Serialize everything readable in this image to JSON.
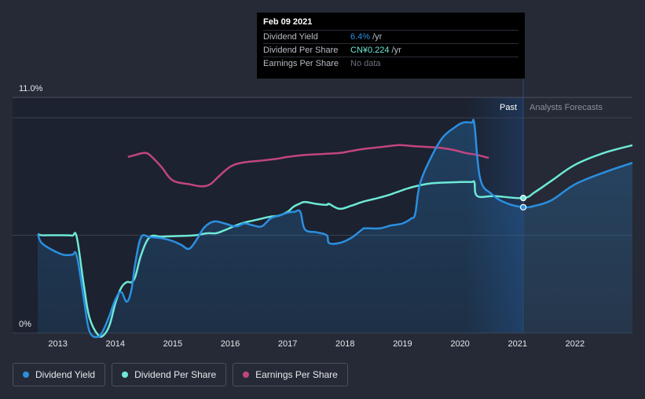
{
  "colors": {
    "dividend_yield": "#2b8fe0",
    "dividend_per_share": "#6ee9d6",
    "earnings_per_share": "#c2457f",
    "background": "#252a36",
    "past_region": "#1c2230",
    "forecast_region": "#1e3556"
  },
  "tooltip": {
    "date": "Feb 09 2021",
    "rows": [
      {
        "name": "Dividend Yield",
        "value": "6.4%",
        "unit": "/yr"
      },
      {
        "name": "Dividend Per Share",
        "value": "CN¥0.224",
        "unit": "/yr"
      },
      {
        "name": "Earnings Per Share",
        "value": "No data",
        "unit": ""
      }
    ]
  },
  "regions": {
    "past_label": "Past",
    "forecast_label": "Analysts Forecasts"
  },
  "legend": [
    {
      "label": "Dividend Yield",
      "color": "#2b8fe0"
    },
    {
      "label": "Dividend Per Share",
      "color": "#6ee9d6"
    },
    {
      "label": "Earnings Per Share",
      "color": "#c2457f"
    }
  ],
  "chart_data": {
    "type": "line",
    "y_axis": {
      "min": 0,
      "max": 11,
      "tick_labels": [
        "0%",
        "11.0%"
      ]
    },
    "x_axis": {
      "min": 2012.65,
      "max": 2023.0,
      "tick_labels": [
        "2013",
        "2014",
        "2015",
        "2016",
        "2017",
        "2018",
        "2019",
        "2020",
        "2021",
        "2022"
      ]
    },
    "past_until": 2021.1,
    "forecast_shade_from": 2020.1,
    "series": [
      {
        "name": "Dividend Yield",
        "x": [
          2012.65,
          2012.72,
          2012.9,
          2013.1,
          2013.25,
          2013.33,
          2013.45,
          2013.55,
          2013.7,
          2013.8,
          2013.9,
          2014.0,
          2014.1,
          2014.2,
          2014.28,
          2014.35,
          2014.45,
          2014.6,
          2014.8,
          2015.0,
          2015.15,
          2015.28,
          2015.4,
          2015.55,
          2015.72,
          2015.9,
          2016.1,
          2016.25,
          2016.4,
          2016.55,
          2016.7,
          2016.85,
          2017.0,
          2017.12,
          2017.22,
          2017.3,
          2017.5,
          2017.68,
          2017.72,
          2017.9,
          2018.1,
          2018.3,
          2018.35,
          2018.6,
          2018.8,
          2019.0,
          2019.15,
          2019.22,
          2019.3,
          2019.5,
          2019.7,
          2019.9,
          2020.05,
          2020.2,
          2020.25,
          2020.35,
          2020.55,
          2020.8,
          2021.1,
          2021.3,
          2021.6,
          2022.0,
          2022.5,
          2023.0
        ],
        "values": [
          5.05,
          4.6,
          4.25,
          4.0,
          4.0,
          3.95,
          1.8,
          0.1,
          -0.2,
          0.2,
          0.9,
          1.7,
          2.1,
          1.6,
          2.2,
          3.6,
          4.9,
          4.9,
          4.85,
          4.7,
          4.5,
          4.3,
          4.7,
          5.4,
          5.7,
          5.6,
          5.45,
          5.6,
          5.5,
          5.45,
          5.85,
          6.0,
          6.15,
          6.2,
          6.2,
          5.3,
          5.15,
          5.0,
          4.6,
          4.6,
          4.85,
          5.3,
          5.35,
          5.35,
          5.5,
          5.6,
          5.85,
          6.1,
          7.6,
          9.0,
          10.0,
          10.5,
          10.75,
          10.75,
          10.65,
          7.9,
          7.1,
          6.65,
          6.43,
          6.5,
          6.8,
          7.6,
          8.2,
          8.7
        ]
      },
      {
        "name": "Dividend Per Share",
        "x": [
          2012.65,
          2012.72,
          2012.9,
          2013.1,
          2013.25,
          2013.33,
          2013.45,
          2013.55,
          2013.7,
          2013.8,
          2013.9,
          2014.0,
          2014.1,
          2014.2,
          2014.28,
          2014.35,
          2014.45,
          2014.6,
          2014.8,
          2015.0,
          2015.2,
          2015.4,
          2015.6,
          2015.75,
          2015.9,
          2016.1,
          2016.25,
          2016.4,
          2016.55,
          2016.7,
          2016.85,
          2017.0,
          2017.1,
          2017.2,
          2017.3,
          2017.5,
          2017.68,
          2017.72,
          2017.9,
          2018.1,
          2018.3,
          2018.5,
          2018.7,
          2018.9,
          2019.1,
          2019.3,
          2019.5,
          2019.8,
          2020.0,
          2020.2,
          2020.25,
          2020.3,
          2020.6,
          2021.1,
          2021.3,
          2021.6,
          2022.0,
          2022.5,
          2023.0
        ],
        "values": [
          5.05,
          5.0,
          5.0,
          5.0,
          4.98,
          4.9,
          2.5,
          0.8,
          -0.1,
          -0.1,
          0.4,
          1.5,
          2.3,
          2.6,
          2.6,
          2.9,
          4.0,
          4.9,
          4.92,
          4.95,
          4.97,
          5.0,
          5.1,
          5.1,
          5.25,
          5.5,
          5.65,
          5.75,
          5.85,
          5.95,
          6.0,
          6.2,
          6.45,
          6.6,
          6.7,
          6.6,
          6.55,
          6.6,
          6.35,
          6.5,
          6.7,
          6.85,
          7.0,
          7.2,
          7.4,
          7.55,
          7.65,
          7.7,
          7.72,
          7.72,
          7.7,
          7.0,
          7.0,
          6.9,
          7.2,
          7.8,
          8.6,
          9.2,
          9.6
        ]
      },
      {
        "name": "Earnings Per Share",
        "x": [
          2014.22,
          2014.35,
          2014.5,
          2014.6,
          2014.8,
          2015.0,
          2015.3,
          2015.5,
          2015.65,
          2015.8,
          2016.0,
          2016.2,
          2016.5,
          2016.8,
          2017.0,
          2017.3,
          2017.6,
          2017.9,
          2018.1,
          2018.3,
          2018.6,
          2018.9,
          2019.0,
          2019.2,
          2019.5,
          2019.7,
          2019.9,
          2020.1,
          2020.3,
          2020.5
        ],
        "values": [
          9.0,
          9.1,
          9.2,
          9.1,
          8.5,
          7.8,
          7.6,
          7.5,
          7.6,
          8.0,
          8.5,
          8.7,
          8.8,
          8.9,
          9.0,
          9.1,
          9.15,
          9.2,
          9.3,
          9.4,
          9.5,
          9.6,
          9.6,
          9.55,
          9.5,
          9.45,
          9.35,
          9.2,
          9.1,
          8.95
        ]
      }
    ]
  }
}
